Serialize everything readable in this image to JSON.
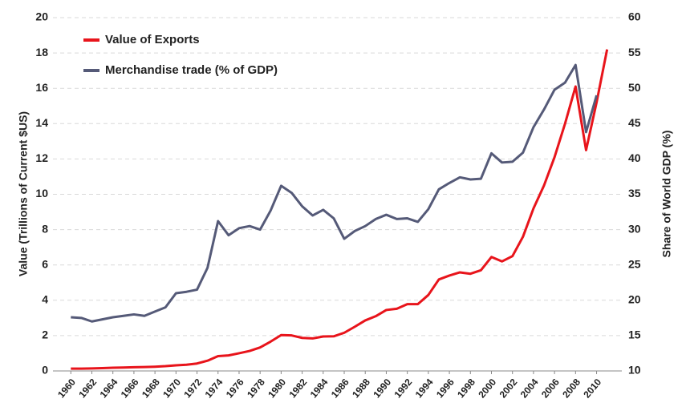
{
  "chart_data": {
    "type": "line",
    "y_label": "Value (Trillions of Current $US)",
    "y2_label": "Share of World GDP (%)",
    "x": [
      1960,
      1961,
      1962,
      1963,
      1964,
      1965,
      1966,
      1967,
      1968,
      1969,
      1970,
      1971,
      1972,
      1973,
      1974,
      1975,
      1976,
      1977,
      1978,
      1979,
      1980,
      1981,
      1982,
      1983,
      1984,
      1985,
      1986,
      1987,
      1988,
      1989,
      1990,
      1991,
      1992,
      1993,
      1994,
      1995,
      1996,
      1997,
      1998,
      1999,
      2000,
      2001,
      2002,
      2003,
      2004,
      2005,
      2006,
      2007,
      2008,
      2009,
      2010,
      2011
    ],
    "xlim": [
      1958.3,
      2012.4
    ],
    "xticks": [
      1960,
      1962,
      1964,
      1966,
      1968,
      1970,
      1972,
      1974,
      1976,
      1978,
      1980,
      1982,
      1984,
      1986,
      1988,
      1990,
      1992,
      1994,
      1996,
      1998,
      2000,
      2002,
      2004,
      2006,
      2008,
      2010
    ],
    "ylim": [
      0,
      20
    ],
    "yticks": [
      0,
      2,
      4,
      6,
      8,
      10,
      12,
      14,
      16,
      18,
      20
    ],
    "y2lim": [
      10,
      60
    ],
    "y2ticks": [
      10,
      15,
      20,
      25,
      30,
      35,
      40,
      45,
      50,
      55,
      60
    ],
    "grid": true,
    "legend": "upper-left",
    "series": [
      {
        "name": "Value of Exports",
        "color": "#e8141b",
        "values": [
          0.13,
          0.13,
          0.14,
          0.16,
          0.18,
          0.19,
          0.21,
          0.22,
          0.24,
          0.27,
          0.32,
          0.35,
          0.42,
          0.58,
          0.84,
          0.88,
          1.0,
          1.13,
          1.33,
          1.66,
          2.03,
          2.01,
          1.87,
          1.84,
          1.95,
          1.96,
          2.16,
          2.5,
          2.86,
          3.1,
          3.45,
          3.52,
          3.78,
          3.78,
          4.3,
          5.18,
          5.4,
          5.58,
          5.5,
          5.7,
          6.45,
          6.2,
          6.5,
          7.6,
          9.2,
          10.5,
          12.1,
          14.0,
          16.1,
          12.5,
          15.2,
          18.2
        ]
      },
      {
        "name": "Merchandise trade (% of GDP)",
        "color": "#555a78",
        "axis": "y2",
        "values": [
          17.6,
          17.5,
          17.0,
          17.3,
          17.6,
          17.8,
          18.0,
          17.8,
          18.4,
          19.0,
          21.0,
          21.2,
          21.5,
          24.6,
          31.2,
          29.2,
          30.2,
          30.5,
          30.0,
          32.7,
          36.2,
          35.2,
          33.3,
          32.0,
          32.8,
          31.6,
          28.7,
          29.8,
          30.5,
          31.5,
          32.1,
          31.5,
          31.6,
          31.1,
          32.9,
          35.7,
          36.6,
          37.4,
          37.1,
          37.2,
          40.8,
          39.5,
          39.6,
          40.9,
          44.5,
          47.0,
          49.8,
          50.8,
          53.3,
          43.8,
          49.0,
          null
        ]
      }
    ]
  }
}
